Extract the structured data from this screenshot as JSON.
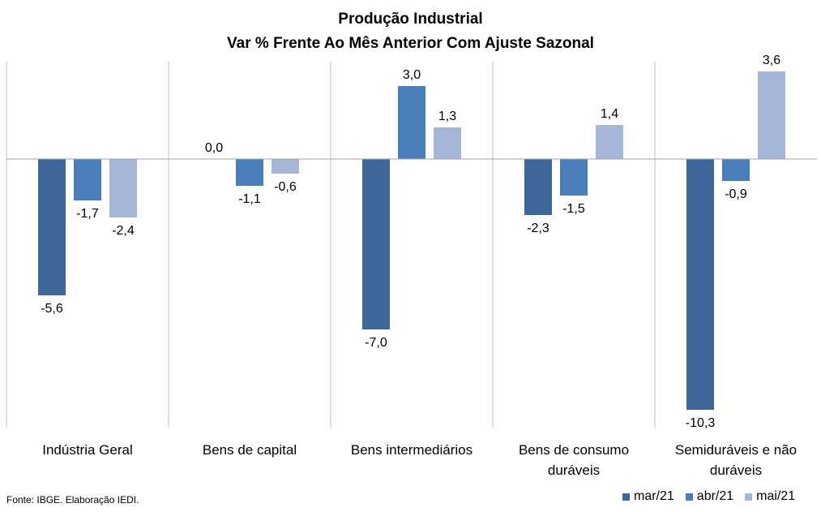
{
  "chart_data": {
    "type": "bar",
    "title": "Produção Industrial",
    "subtitle": "Var % Frente Ao Mês Anterior Com Ajuste Sazonal",
    "categories": [
      [
        "Indústria Geral"
      ],
      [
        "Bens de capital"
      ],
      [
        "Bens intermediários"
      ],
      [
        "Bens de consumo",
        "duráveis"
      ],
      [
        "Semiduráveis e não",
        "duráveis"
      ]
    ],
    "series": [
      {
        "name": "mar/21",
        "color": "#3D6699",
        "values": [
          -5.6,
          0.0,
          -7.0,
          -2.3,
          -10.3
        ]
      },
      {
        "name": "abr/21",
        "color": "#4A7EBB",
        "values": [
          -1.7,
          -1.1,
          3.0,
          -1.5,
          -0.9
        ]
      },
      {
        "name": "mai/21",
        "color": "#A6B6D6",
        "values": [
          -2.4,
          -0.6,
          1.3,
          1.4,
          3.6
        ]
      }
    ],
    "labels": [
      [
        "-5,6",
        "0,0",
        "-7,0",
        "-2,3",
        "-10,3"
      ],
      [
        "-1,7",
        "-1,1",
        "3,0",
        "-1,5",
        "-0,9"
      ],
      [
        "-2,4",
        "-0,6",
        "1,3",
        "1,4",
        "3,6"
      ]
    ],
    "ylim": [
      -11,
      4
    ],
    "grid": "vertical category separators",
    "legend_position": "bottom-right"
  },
  "source": "Fonte: IBGE. Elaboração IEDI."
}
